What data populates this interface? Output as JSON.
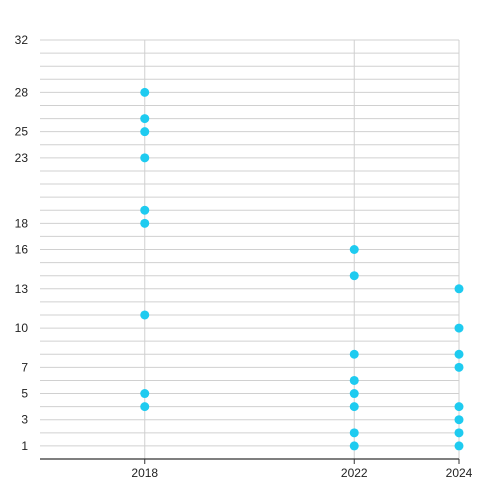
{
  "chart_data": {
    "type": "scatter",
    "title": "",
    "xlabel": "",
    "ylabel": "",
    "x_ticks": [
      2018,
      2022,
      2024
    ],
    "x_tick_labels": [
      "2018",
      "2022",
      "2024"
    ],
    "y_ticks": [
      1,
      3,
      5,
      7,
      10,
      13,
      16,
      18,
      23,
      25,
      28,
      32
    ],
    "y_tick_labels": [
      "1",
      "3",
      "5",
      "7",
      "10",
      "13",
      "16",
      "18",
      "23",
      "25",
      "28",
      "32"
    ],
    "y_minor_gridlines": [
      2,
      4,
      6,
      8,
      9,
      11,
      12,
      14,
      15,
      17,
      19,
      20,
      21,
      22,
      24,
      26,
      27,
      29,
      30,
      31
    ],
    "xlim": [
      2016,
      2024
    ],
    "ylim": [
      0,
      32
    ],
    "grid": true,
    "legend": "none",
    "series": [
      {
        "points": [
          {
            "x": 2018,
            "y": 28
          },
          {
            "x": 2018,
            "y": 26
          },
          {
            "x": 2018,
            "y": 25
          },
          {
            "x": 2018,
            "y": 23
          },
          {
            "x": 2018,
            "y": 19
          },
          {
            "x": 2018,
            "y": 18
          },
          {
            "x": 2018,
            "y": 11
          },
          {
            "x": 2018,
            "y": 5
          },
          {
            "x": 2018,
            "y": 4
          },
          {
            "x": 2022,
            "y": 16
          },
          {
            "x": 2022,
            "y": 14
          },
          {
            "x": 2022,
            "y": 8
          },
          {
            "x": 2022,
            "y": 6
          },
          {
            "x": 2022,
            "y": 5
          },
          {
            "x": 2022,
            "y": 4
          },
          {
            "x": 2022,
            "y": 2
          },
          {
            "x": 2022,
            "y": 1
          },
          {
            "x": 2024,
            "y": 13
          },
          {
            "x": 2024,
            "y": 10
          },
          {
            "x": 2024,
            "y": 8
          },
          {
            "x": 2024,
            "y": 7
          },
          {
            "x": 2024,
            "y": 4
          },
          {
            "x": 2024,
            "y": 3
          },
          {
            "x": 2024,
            "y": 2
          },
          {
            "x": 2024,
            "y": 1
          }
        ]
      }
    ],
    "colors": {
      "point": "#1ecbf0",
      "grid": "#d0d0d0",
      "axis": "#333333",
      "text": "#222222"
    }
  }
}
